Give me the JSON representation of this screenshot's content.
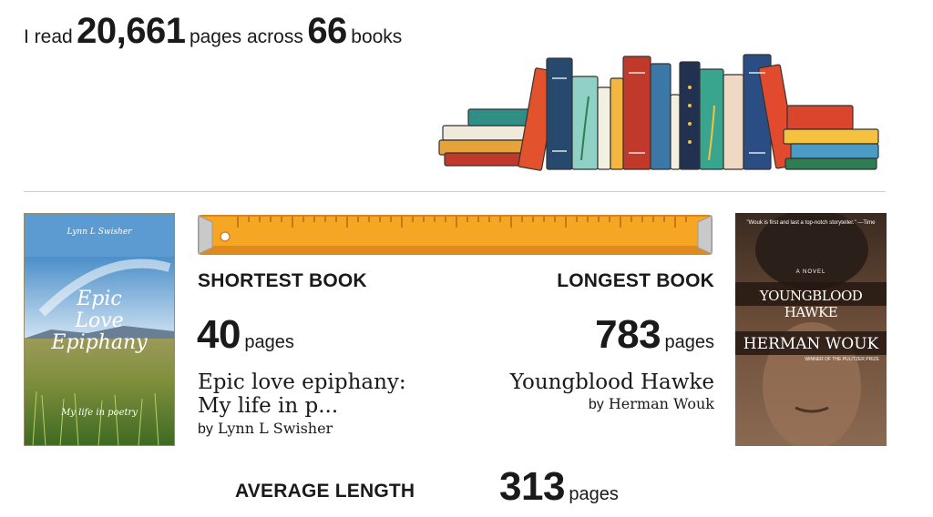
{
  "header": {
    "prefix": "I read",
    "pages_count": "20,661",
    "middle": "pages across",
    "books_count": "66",
    "suffix": "books"
  },
  "shortest": {
    "label": "SHORTEST BOOK",
    "pages": "40",
    "pages_unit": "pages",
    "title_line1": "Epic love epiphany:",
    "title_line2": "My life in p...",
    "by": "by",
    "author": "Lynn L Swisher",
    "cover": {
      "author": "Lynn L Swisher",
      "title_line1": "Epic",
      "title_line2": "Love",
      "title_line3": "Epiphany",
      "subtitle": "My life in poetry"
    }
  },
  "longest": {
    "label": "LONGEST BOOK",
    "pages": "783",
    "pages_unit": "pages",
    "title": "Youngblood Hawke",
    "by": "by",
    "author": "Herman Wouk",
    "cover": {
      "quote": "\"Wouk is first and last a top-notch storyteller.\" —Time",
      "novel_tag": "A NOVEL",
      "title": "YOUNGBLOOD HAWKE",
      "author": "HERMAN WOUK",
      "award": "WINNER OF THE PULITZER PRIZE"
    }
  },
  "average": {
    "label": "AVERAGE LENGTH",
    "pages": "313",
    "pages_unit": "pages"
  },
  "colors": {
    "ruler_orange": "#f5a623",
    "divider": "#cfcfcf",
    "cover_sky": "#5b9bd1"
  }
}
